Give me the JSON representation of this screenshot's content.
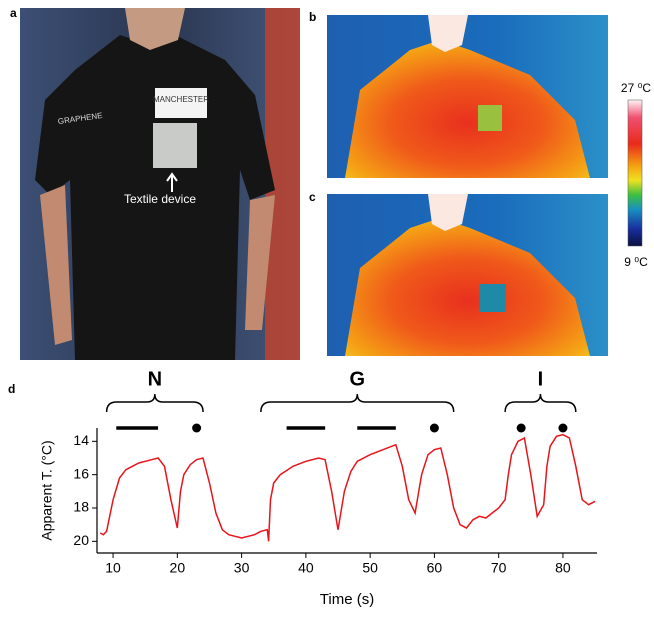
{
  "panels": {
    "a": {
      "label": "a",
      "annotation": "Textile device",
      "shirt_texts": [
        "GRAPHENE",
        "MANCHESTER"
      ]
    },
    "b": {
      "label": "b"
    },
    "c": {
      "label": "c"
    },
    "colorbar": {
      "top_label": "27 ⁰C",
      "bottom_label": "9 ⁰C"
    },
    "d": {
      "label": "d"
    }
  },
  "chart_data": {
    "type": "line",
    "x_label": "Time (s)",
    "y_label": "Apparent T. (°C)",
    "color": "#e8141b",
    "xlim": [
      7.5,
      85.3
    ],
    "ylim": [
      20.7,
      13.2
    ],
    "xticks": [
      10,
      20,
      30,
      40,
      50,
      60,
      70,
      80
    ],
    "yticks": [
      14,
      16,
      18,
      20
    ],
    "x": [
      8,
      8.5,
      9,
      10,
      11,
      12,
      14,
      16,
      17,
      18,
      19,
      20,
      20.5,
      21,
      22,
      23,
      24,
      25,
      26,
      27,
      28,
      30,
      32,
      33,
      34,
      34.2,
      34.5,
      35,
      36,
      38,
      40,
      42,
      43,
      44,
      45,
      46,
      47,
      48,
      50,
      52,
      54,
      55,
      56,
      57,
      58,
      59,
      60,
      61,
      62,
      63,
      64,
      65,
      66,
      67,
      68,
      69,
      70,
      71,
      71.5,
      72,
      73,
      74,
      75,
      76,
      77,
      77.5,
      78,
      79,
      80,
      81,
      82,
      83,
      84,
      85
    ],
    "values": [
      19.5,
      19.6,
      19.4,
      17.5,
      16.2,
      15.7,
      15.3,
      15.1,
      15.0,
      15.5,
      17.5,
      19.2,
      17.0,
      16.0,
      15.4,
      15.1,
      15.0,
      16.5,
      18.3,
      19.3,
      19.6,
      19.8,
      19.6,
      19.4,
      19.3,
      20.0,
      17.5,
      16.5,
      16.0,
      15.5,
      15.2,
      15.0,
      15.1,
      17.0,
      19.3,
      17.0,
      15.8,
      15.2,
      14.8,
      14.5,
      14.2,
      15.5,
      17.5,
      18.3,
      16.0,
      14.8,
      14.5,
      14.4,
      16.0,
      18.0,
      19.0,
      19.2,
      18.7,
      18.5,
      18.6,
      18.3,
      18.0,
      17.5,
      16.0,
      14.8,
      14.0,
      13.8,
      16.0,
      18.5,
      17.8,
      15.5,
      14.3,
      13.7,
      13.6,
      13.8,
      15.5,
      17.5,
      17.8,
      17.6
    ],
    "letters": [
      {
        "label": "N",
        "start": 9,
        "end": 24
      },
      {
        "label": "G",
        "start": 33,
        "end": 63
      },
      {
        "label": "I",
        "start": 71,
        "end": 82
      }
    ],
    "dashes": [
      [
        10.5,
        17
      ],
      [
        37,
        43
      ],
      [
        48,
        54
      ]
    ],
    "dots": [
      23,
      60,
      73.5,
      80
    ]
  }
}
